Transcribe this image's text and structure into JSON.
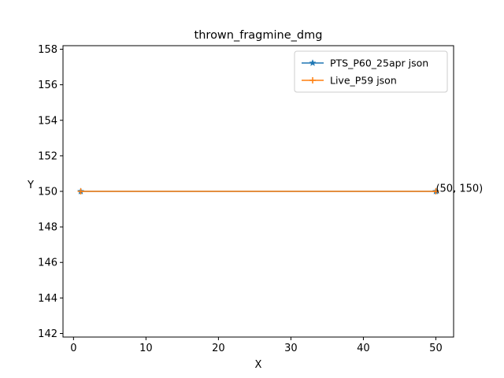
{
  "chart_data": {
    "type": "line",
    "title": "thrown_fragmine_dmg",
    "xlabel": "X",
    "ylabel": "Y",
    "xlim": [
      -1.45,
      52.45
    ],
    "ylim": [
      141.8,
      158.2
    ],
    "x_ticks": [
      0,
      10,
      20,
      30,
      40,
      50
    ],
    "y_ticks": [
      142,
      144,
      146,
      148,
      150,
      152,
      154,
      156,
      158
    ],
    "legend_position": "upper right",
    "grid": false,
    "series": [
      {
        "name": "PTS_P60_25apr json",
        "color": "#1f77b4",
        "marker": "star",
        "x": [
          1,
          50
        ],
        "y": [
          150,
          150
        ]
      },
      {
        "name": "Live_P59 json",
        "color": "#ff7f0e",
        "marker": "plus",
        "x": [
          1,
          50
        ],
        "y": [
          150,
          150
        ]
      }
    ],
    "annotations": [
      {
        "text": "(50, 150)",
        "x": 50,
        "y": 150
      }
    ]
  }
}
